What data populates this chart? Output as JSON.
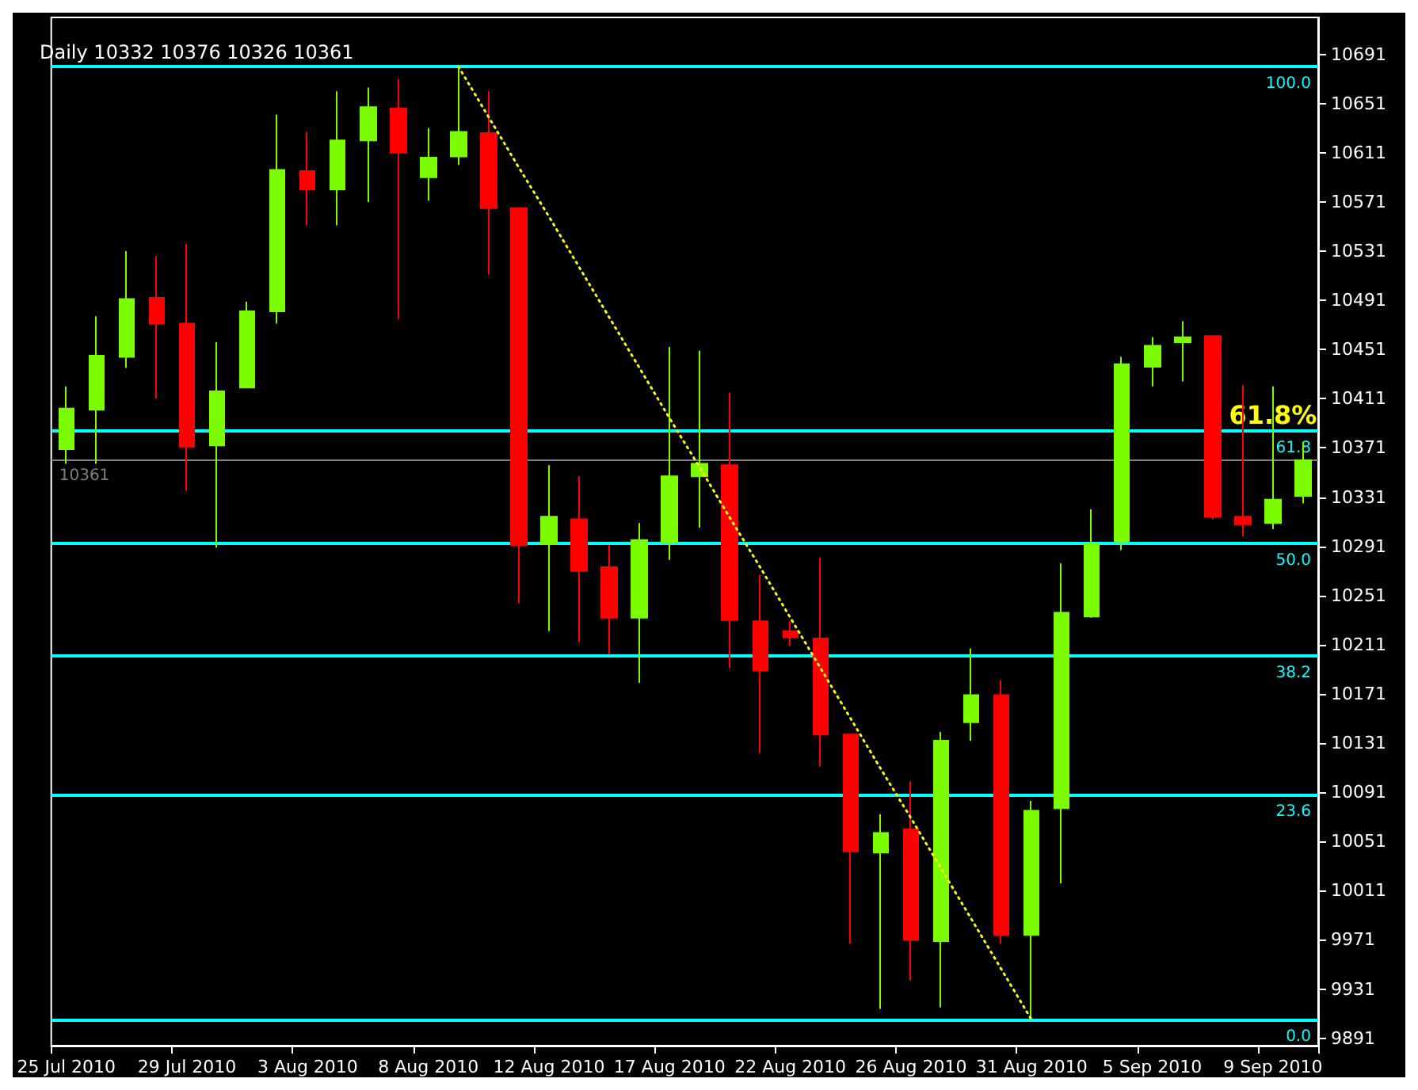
{
  "chart_data": {
    "type": "candlestick",
    "title": "Daily 10332 10376 10326 10361",
    "categories": [
      "25 Jul 2010",
      null,
      null,
      null,
      "29 Jul 2010",
      null,
      null,
      null,
      "3 Aug 2010",
      null,
      null,
      null,
      "8 Aug 2010",
      null,
      null,
      null,
      "12 Aug 2010",
      null,
      null,
      null,
      "17 Aug 2010",
      null,
      null,
      null,
      "22 Aug 2010",
      null,
      null,
      null,
      "26 Aug 2010",
      null,
      null,
      null,
      "31 Aug 2010",
      null,
      null,
      null,
      "5 Sep 2010",
      null,
      null,
      null,
      "9 Sep 2010",
      null
    ],
    "series": [
      {
        "type": "candlestick",
        "ohlc": [
          [
            10370,
            10421,
            10358,
            10403
          ],
          [
            10402,
            10478,
            10358,
            10446
          ],
          [
            10445,
            10531,
            10436,
            10492
          ],
          [
            10493,
            10527,
            10411,
            10472
          ],
          [
            10472,
            10537,
            10336,
            10372
          ],
          [
            10373,
            10457,
            10290,
            10417
          ],
          [
            10420,
            10490,
            10420,
            10482
          ],
          [
            10482,
            10642,
            10472,
            10597
          ],
          [
            10596,
            10628,
            10552,
            10581
          ],
          [
            10581,
            10661,
            10552,
            10621
          ],
          [
            10621,
            10664,
            10571,
            10648
          ],
          [
            10647,
            10671,
            10476,
            10611
          ],
          [
            10591,
            10631,
            10572,
            10607
          ],
          [
            10608,
            10681,
            10601,
            10628
          ],
          [
            10627,
            10661,
            10512,
            10566
          ],
          [
            10566,
            10566,
            10245,
            10292
          ],
          [
            10293,
            10357,
            10222,
            10315
          ],
          [
            10313,
            10348,
            10213,
            10271
          ],
          [
            10274,
            10292,
            10203,
            10233
          ],
          [
            10233,
            10310,
            10180,
            10296
          ],
          [
            10294,
            10453,
            10280,
            10348
          ],
          [
            10348,
            10450,
            10306,
            10358
          ],
          [
            10357,
            10416,
            10192,
            10231
          ],
          [
            10230,
            10268,
            10123,
            10190
          ],
          [
            10222,
            10230,
            10210,
            10217
          ],
          [
            10216,
            10282,
            10112,
            10138
          ],
          [
            10138,
            10138,
            9968,
            10043
          ],
          [
            10042,
            10073,
            9915,
            10058
          ],
          [
            10061,
            10100,
            9938,
            9971
          ],
          [
            9970,
            10140,
            9916,
            10133
          ],
          [
            10148,
            10208,
            10133,
            10170
          ],
          [
            10170,
            10182,
            9968,
            9975
          ],
          [
            9975,
            10084,
            9906,
            10076
          ],
          [
            10078,
            10277,
            10017,
            10237
          ],
          [
            10234,
            10321,
            10233,
            10293
          ],
          [
            10295,
            10445,
            10288,
            10439
          ],
          [
            10437,
            10461,
            10421,
            10454
          ],
          [
            10457,
            10474,
            10425,
            10461
          ],
          [
            10462,
            10462,
            10313,
            10315
          ],
          [
            10315,
            10422,
            10299,
            10309
          ],
          [
            10310,
            10421,
            10305,
            10329
          ],
          [
            10332,
            10376,
            10326,
            10361
          ]
        ],
        "colors": [
          "#7cfc00",
          "#7cfc00",
          "#7cfc00",
          "#ff0000",
          "#ff0000",
          "#7cfc00",
          "#7cfc00",
          "#7cfc00",
          "#ff0000",
          "#7cfc00",
          "#7cfc00",
          "#ff0000",
          "#7cfc00",
          "#7cfc00",
          "#ff0000",
          "#ff0000",
          "#7cfc00",
          "#ff0000",
          "#ff0000",
          "#7cfc00",
          "#7cfc00",
          "#7cfc00",
          "#ff0000",
          "#ff0000",
          "#ff0000",
          "#ff0000",
          "#ff0000",
          "#7cfc00",
          "#ff0000",
          "#7cfc00",
          "#7cfc00",
          "#ff0000",
          "#7cfc00",
          "#7cfc00",
          "#7cfc00",
          "#7cfc00",
          "#7cfc00",
          "#7cfc00",
          "#ff0000",
          "#ff0000",
          "#7cfc00",
          "#7cfc00"
        ]
      },
      {
        "type": "line",
        "values": [
          null,
          null,
          null,
          null,
          null,
          null,
          null,
          null,
          null,
          null,
          null,
          null,
          null,
          10681,
          10640,
          10599,
          10559,
          10518,
          10477,
          10436,
          10395,
          10355,
          10314,
          10274,
          10233,
          10192,
          10151,
          10110,
          10070,
          10029,
          9988,
          9947,
          9906,
          null,
          null,
          null,
          null,
          null,
          null,
          null,
          null,
          null
        ],
        "color": "#ffff00",
        "line_style": "dotted"
      }
    ],
    "ylim": [
      9885,
      10721
    ],
    "yticks": [
      9891,
      9931,
      9971,
      10011,
      10051,
      10091,
      10131,
      10171,
      10211,
      10251,
      10291,
      10331,
      10371,
      10411,
      10451,
      10491,
      10531,
      10571,
      10611,
      10651,
      10691
    ],
    "ref_lines": [
      {
        "axis": "y",
        "value": 10681,
        "color": "#00ffff"
      },
      {
        "axis": "y",
        "value": 10385,
        "color": "#00ffff"
      },
      {
        "axis": "y",
        "value": 10293.5,
        "color": "#00ffff"
      },
      {
        "axis": "y",
        "value": 10202,
        "color": "#00ffff"
      },
      {
        "axis": "y",
        "value": 10089,
        "color": "#00ffff"
      },
      {
        "axis": "y",
        "value": 9906,
        "color": "#00ffff"
      },
      {
        "axis": "y",
        "value": 10361,
        "label": "10361",
        "color": "#808080"
      }
    ],
    "annotations": [
      {
        "text": "61.8%",
        "x": "9 Sep 2010",
        "y": 10385
      },
      {
        "text": "100.0",
        "y": 10681
      },
      {
        "text": "61.8",
        "y": 10385
      },
      {
        "text": "50.0",
        "y": 10293.5
      },
      {
        "text": "38.2",
        "y": 10202
      },
      {
        "text": "23.6",
        "y": 10089
      },
      {
        "text": "0.0",
        "y": 9906
      }
    ],
    "grid": false
  }
}
